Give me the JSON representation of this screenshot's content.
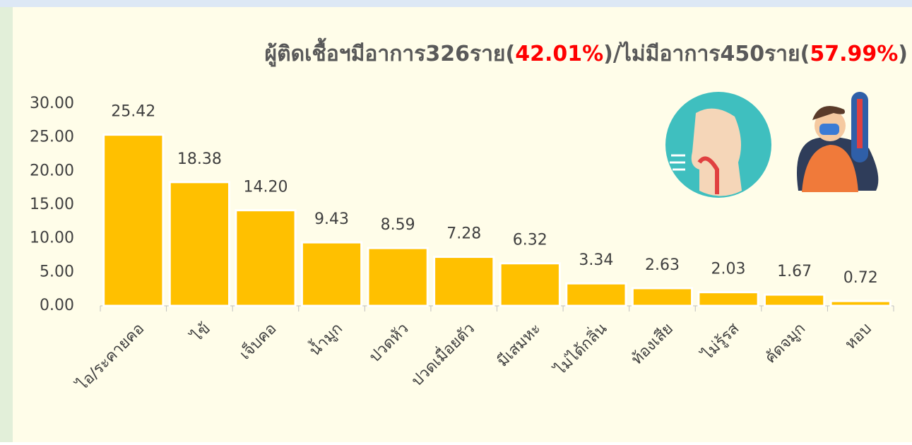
{
  "chart_data": {
    "type": "bar",
    "title": [
      {
        "text": "ผู้ติดเชื้อฯมีอาการ326ราย(",
        "color": "#595959"
      },
      {
        "text": "42.01%",
        "color": "#ff0000"
      },
      {
        "text": ")/ไม่มีอาการ450ราย(",
        "color": "#595959"
      },
      {
        "text": "57.99%",
        "color": "#ff0000"
      },
      {
        "text": ")",
        "color": "#595959"
      }
    ],
    "categories": [
      "ไอ/ระคายคอ",
      "ไข้",
      "เจ็บคอ",
      "น้ำมูก",
      "ปวดหัว",
      "ปวดเมื่อยตัว",
      "มีเสมหะ",
      "ไม่ได้กลิ่น",
      "ท้องเสีย",
      "ไม่รู้รส",
      "คัดจมูก",
      "หอบ"
    ],
    "values": [
      25.42,
      18.38,
      14.2,
      9.43,
      8.59,
      7.28,
      6.32,
      3.34,
      2.63,
      2.03,
      1.67,
      0.72
    ],
    "value_labels": [
      "25.42",
      "18.38",
      "14.20",
      "9.43",
      "8.59",
      "7.28",
      "6.32",
      "3.34",
      "2.63",
      "2.03",
      "1.67",
      "0.72"
    ],
    "color": "#ffc000",
    "ylim": [
      0,
      30
    ],
    "yticks": [
      {
        "value": 0,
        "label": "0.00"
      },
      {
        "value": 5,
        "label": "5.00"
      },
      {
        "value": 10,
        "label": "10.00"
      },
      {
        "value": 15,
        "label": "15.00"
      },
      {
        "value": 20,
        "label": "20.00"
      },
      {
        "value": 25,
        "label": "25.00"
      },
      {
        "value": 30,
        "label": "30.00"
      }
    ],
    "grid": false
  }
}
